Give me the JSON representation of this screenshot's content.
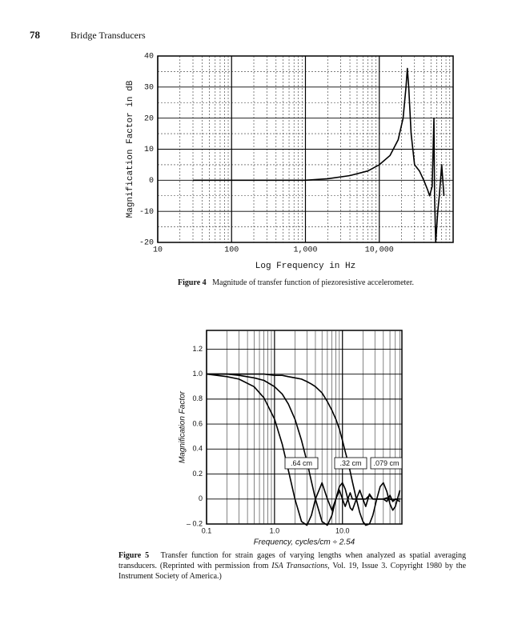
{
  "header": {
    "page": "78",
    "title": "Bridge Transducers"
  },
  "chart_data": [
    {
      "type": "line",
      "log_x": true,
      "grid": true,
      "color": "#000000",
      "x_label": "Log Frequency in Hz",
      "y_label": "Magnification Factor in dB",
      "xlim": [
        10,
        100000
      ],
      "ylim": [
        -20,
        40
      ],
      "xticks": [
        10,
        100,
        {
          "value": 1000,
          "label": "1,000"
        },
        {
          "value": 10000,
          "label": "10,000"
        }
      ],
      "yticks": [
        40,
        30,
        20,
        10,
        0,
        -10,
        -20
      ],
      "x": [
        30,
        100,
        300,
        1000,
        2000,
        4000,
        7000,
        10000,
        14000,
        18000,
        21000,
        23000,
        24000,
        25000,
        27000,
        30000,
        35000,
        40000,
        45000,
        48000,
        52000,
        55000,
        56000,
        58000,
        60000,
        62000,
        65000,
        70000,
        75000
      ],
      "values": [
        0,
        0,
        0,
        0,
        0.5,
        1.5,
        3,
        5,
        8,
        13,
        20,
        30,
        36,
        30,
        15,
        5,
        3,
        0,
        -3,
        -5,
        -2,
        20,
        -5,
        -20,
        -15,
        -10,
        -5,
        5,
        -5
      ],
      "caption": {
        "label": "Figure 4",
        "text": "Magnitude of transfer function of piezoresistive accelerometer."
      }
    },
    {
      "type": "line",
      "log_x": true,
      "grid": true,
      "x_label": "Frequency, cycles/cm ÷ 2.54",
      "y_label": "Magnification Factor",
      "xlim": [
        0.1,
        75
      ],
      "ylim": [
        -0.2,
        1.35
      ],
      "xticks": [
        0.1,
        {
          "value": 1,
          "label": "1.0"
        },
        {
          "value": 10,
          "label": "10.0"
        }
      ],
      "yticks": [
        1.2,
        {
          "value": 1,
          "label": "1.0"
        },
        0.8,
        0.6,
        0.4,
        0.2,
        0,
        {
          "value": -0.2,
          "label": "– 0.2"
        }
      ],
      "x": [
        0.1,
        0.2,
        0.3,
        0.5,
        0.7,
        1,
        1.3,
        1.6,
        2,
        2.5,
        3,
        3.5,
        4,
        5,
        6,
        7,
        8,
        9,
        10,
        11,
        12,
        13,
        14,
        16,
        18,
        20,
        22,
        25,
        28,
        32,
        36,
        40,
        45,
        50,
        55,
        60,
        70
      ],
      "series": [
        {
          "name": ".64 cm",
          "color": "#000000",
          "values": [
            1.0,
            0.98,
            0.96,
            0.9,
            0.81,
            0.64,
            0.44,
            0.23,
            0,
            -0.18,
            -0.21,
            -0.13,
            0,
            0.13,
            0,
            -0.09,
            0,
            0.07,
            0,
            -0.06,
            0,
            0.05,
            0,
            0,
            0,
            0,
            0,
            0.03,
            0,
            0,
            0,
            0,
            0.01,
            0,
            -0.01,
            0,
            0
          ]
        },
        {
          "name": ".32 cm",
          "color": "#000000",
          "values": [
            1.0,
            1.0,
            0.99,
            0.97,
            0.95,
            0.9,
            0.84,
            0.76,
            0.64,
            0.47,
            0.3,
            0.14,
            0,
            -0.18,
            -0.21,
            -0.13,
            0,
            0.1,
            0.13,
            0.08,
            0,
            -0.07,
            -0.09,
            0,
            0.07,
            0,
            -0.06,
            0.04,
            0,
            0,
            0,
            0,
            -0.02,
            0.03,
            -0.02,
            0,
            -0.02
          ]
        },
        {
          "name": ".079 cm",
          "color": "#000000",
          "values": [
            1.0,
            1.0,
            1.0,
            1.0,
            1.0,
            0.99,
            0.99,
            0.98,
            0.97,
            0.96,
            0.94,
            0.92,
            0.9,
            0.85,
            0.78,
            0.71,
            0.64,
            0.56,
            0.47,
            0.38,
            0.3,
            0.22,
            0.14,
            0,
            -0.11,
            -0.18,
            -0.21,
            -0.2,
            -0.13,
            0,
            0.1,
            0.13,
            0.06,
            -0.04,
            -0.09,
            -0.06,
            0.07
          ]
        }
      ],
      "caption": {
        "label": "Figure 5",
        "text1": "Transfer function for strain gages of varying lengths when analyzed as spatial averaging transducers. (Reprinted with permission from ",
        "italic": "ISA Transactions,",
        "text2": " Vol. 19, Issue 3. Copyright 1980 by the Instrument Society of America.)"
      }
    }
  ]
}
